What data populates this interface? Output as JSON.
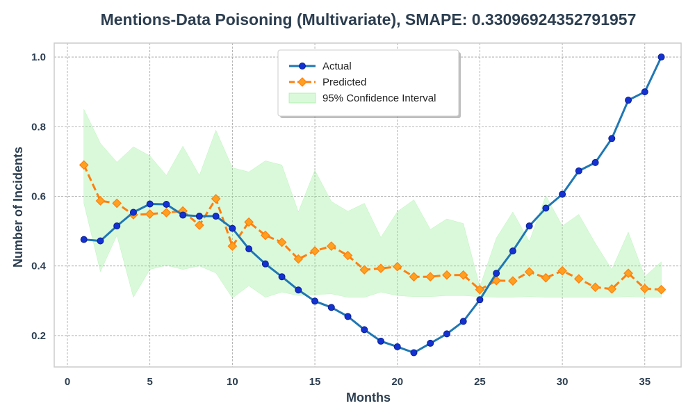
{
  "colors": {
    "actual_line": "#1f77b4",
    "actual_marker": "#1432d2",
    "predicted_line": "#ff7f0e",
    "predicted_marker": "#ffa020",
    "ci_fill": "#90ee90",
    "grid": "#a0a0a0",
    "axes": "#cccccc",
    "text": "#2c3e50"
  },
  "chart_data": {
    "type": "line",
    "title": "Mentions-Data Poisoning (Multivariate), SMAPE: 0.33096924352791957",
    "xlabel": "Months",
    "ylabel": "Number of Incidents",
    "xlim": [
      -0.8,
      37.2
    ],
    "ylim": [
      0.11,
      1.04
    ],
    "xticks": [
      0,
      5,
      10,
      15,
      20,
      25,
      30,
      35
    ],
    "yticks": [
      0.2,
      0.4,
      0.6,
      0.8,
      1.0
    ],
    "xtick_labels": [
      "0",
      "5",
      "10",
      "15",
      "20",
      "25",
      "30",
      "35"
    ],
    "ytick_labels": [
      "0.2",
      "0.4",
      "0.6",
      "0.8",
      "1.0"
    ],
    "grid": true,
    "legend_position": "top-center",
    "x": [
      1,
      2,
      3,
      4,
      5,
      6,
      7,
      8,
      9,
      10,
      11,
      12,
      13,
      14,
      15,
      16,
      17,
      18,
      19,
      20,
      21,
      22,
      23,
      24,
      25,
      26,
      27,
      28,
      29,
      30,
      31,
      32,
      33,
      34,
      35,
      36
    ],
    "series": [
      {
        "name": "Actual",
        "style": "solid-circle",
        "values": [
          0.476,
          0.472,
          0.515,
          0.554,
          0.578,
          0.577,
          0.546,
          0.543,
          0.543,
          0.508,
          0.449,
          0.406,
          0.369,
          0.331,
          0.299,
          0.281,
          0.255,
          0.217,
          0.184,
          0.168,
          0.151,
          0.178,
          0.205,
          0.241,
          0.303,
          0.379,
          0.443,
          0.515,
          0.566,
          0.606,
          0.673,
          0.697,
          0.766,
          0.876,
          0.9,
          1.0
        ]
      },
      {
        "name": "Predicted",
        "style": "dashed-diamond",
        "values": [
          0.69,
          0.587,
          0.58,
          0.547,
          0.549,
          0.553,
          0.558,
          0.517,
          0.593,
          0.457,
          0.526,
          0.488,
          0.468,
          0.42,
          0.443,
          0.457,
          0.43,
          0.389,
          0.393,
          0.398,
          0.369,
          0.369,
          0.374,
          0.374,
          0.332,
          0.358,
          0.357,
          0.383,
          0.366,
          0.386,
          0.363,
          0.339,
          0.334,
          0.379,
          0.335,
          0.332
        ]
      }
    ],
    "confidence_interval": {
      "name": "95% Confidence Interval",
      "upper": [
        0.85,
        0.752,
        0.698,
        0.742,
        0.716,
        0.66,
        0.744,
        0.66,
        0.79,
        0.682,
        0.67,
        0.702,
        0.69,
        0.555,
        0.675,
        0.585,
        0.557,
        0.58,
        0.482,
        0.556,
        0.59,
        0.505,
        0.535,
        0.522,
        0.34,
        0.48,
        0.555,
        0.47,
        0.602,
        0.515,
        0.548,
        0.465,
        0.39,
        0.497,
        0.37,
        0.412
      ],
      "lower": [
        0.58,
        0.384,
        0.488,
        0.31,
        0.39,
        0.402,
        0.39,
        0.4,
        0.38,
        0.308,
        0.343,
        0.31,
        0.325,
        0.315,
        0.318,
        0.32,
        0.31,
        0.31,
        0.325,
        0.315,
        0.312,
        0.312,
        0.315,
        0.315,
        0.312,
        0.31,
        0.31,
        0.312,
        0.31,
        0.31,
        0.31,
        0.31,
        0.31,
        0.312,
        0.31,
        0.31
      ]
    }
  }
}
